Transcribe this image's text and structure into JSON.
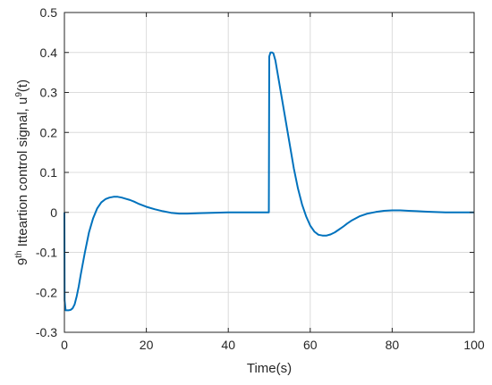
{
  "chart_data": {
    "type": "line",
    "title": "",
    "xlabel": "Time(s)",
    "ylabel": {
      "prefix": "9",
      "prefix_sup": "th",
      "main": " Itteartion control signal, u",
      "main_sup": "9",
      "suffix": "(t)"
    },
    "xlim": [
      0,
      100
    ],
    "ylim": [
      -0.3,
      0.5
    ],
    "x_ticks": [
      0,
      20,
      40,
      60,
      80,
      100
    ],
    "x_tick_labels": [
      "0",
      "20",
      "40",
      "60",
      "80",
      "100"
    ],
    "y_ticks": [
      -0.3,
      -0.2,
      -0.1,
      0,
      0.1,
      0.2,
      0.3,
      0.4,
      0.5
    ],
    "y_tick_labels": [
      "-0.3",
      "-0.2",
      "-0.1",
      "0",
      "0.1",
      "0.2",
      "0.3",
      "0.4",
      "0.5"
    ],
    "grid": true,
    "line_color": "#0072bd",
    "series": [
      {
        "x": [
          0,
          0.05,
          0.3,
          0.6,
          1,
          1.5,
          2,
          2.5,
          3,
          3.5,
          4,
          5,
          6,
          7,
          8,
          9,
          10,
          11,
          12,
          13,
          14,
          15,
          16,
          17,
          18,
          19,
          20,
          22,
          24,
          26,
          28,
          30,
          33,
          36,
          40,
          44,
          48,
          49.9,
          50,
          50.3,
          50.7,
          51,
          51.5,
          52,
          53,
          54,
          55,
          56,
          57,
          58,
          59,
          60,
          61,
          62,
          63,
          64,
          65,
          66,
          67,
          68,
          69,
          70,
          72,
          74,
          76,
          78,
          80,
          82,
          84,
          86,
          88,
          90,
          93,
          96,
          100
        ],
        "y": [
          0,
          -0.22,
          -0.245,
          -0.245,
          -0.245,
          -0.244,
          -0.24,
          -0.23,
          -0.21,
          -0.185,
          -0.155,
          -0.1,
          -0.05,
          -0.015,
          0.01,
          0.025,
          0.033,
          0.037,
          0.039,
          0.039,
          0.037,
          0.034,
          0.031,
          0.027,
          0.022,
          0.018,
          0.014,
          0.008,
          0.003,
          -0.001,
          -0.003,
          -0.003,
          -0.002,
          -0.001,
          0,
          0,
          0,
          0,
          0.39,
          0.4,
          0.4,
          0.398,
          0.38,
          0.35,
          0.29,
          0.23,
          0.17,
          0.11,
          0.06,
          0.02,
          -0.01,
          -0.033,
          -0.048,
          -0.056,
          -0.058,
          -0.058,
          -0.055,
          -0.05,
          -0.043,
          -0.036,
          -0.028,
          -0.021,
          -0.01,
          -0.003,
          0.001,
          0.004,
          0.005,
          0.005,
          0.004,
          0.003,
          0.002,
          0.001,
          0,
          0,
          0
        ]
      }
    ]
  }
}
